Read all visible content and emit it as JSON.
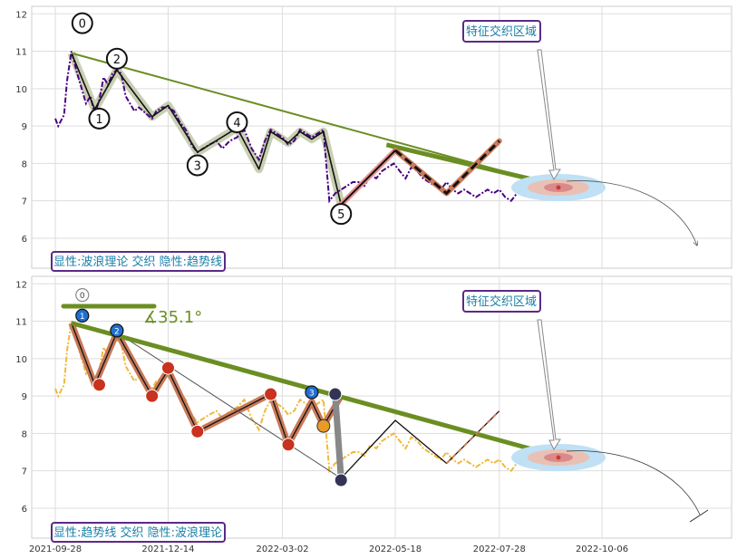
{
  "colors": {
    "trend": "#6b8e23",
    "wave_shadow": "#c8cfb3",
    "price_top": "#4b0082",
    "price_bottom": "#f0b93b",
    "projection_up": "#e0604a",
    "projection_brown": "#c87a5a",
    "box_border": "#5b2a86",
    "box_text": "#1a7fa8",
    "target_outer": "#bfe0f5",
    "target_inner": "#d98b8b",
    "marker_red": "#c8321e",
    "marker_blue": "#1f6fd0",
    "marker_orange": "#e89a26",
    "marker_dark": "#333355"
  },
  "chart_data": [
    {
      "type": "line",
      "panel": "top",
      "y_ticks": [
        6,
        7,
        8,
        9,
        10,
        11,
        12
      ],
      "ylim": [
        5.2,
        12.2
      ],
      "grid": true,
      "annotations": {
        "region_label": "特征交织区域",
        "bottom_label": "显性:波浪理论 交织 隐性:趋势线"
      },
      "wave_labels": [
        "0",
        "1",
        "2",
        "3",
        "4",
        "5"
      ],
      "series": [
        {
          "role": "price",
          "x": [
            "2021-09-28",
            "2021-09-30",
            "2021-10-04",
            "2021-10-06",
            "2021-10-09",
            "2021-10-13",
            "2021-10-16",
            "2021-10-19",
            "2021-10-22",
            "2021-10-25",
            "2021-10-28",
            "2021-10-31",
            "2021-11-03",
            "2021-11-06",
            "2021-11-09",
            "2021-11-12",
            "2021-11-15",
            "2021-11-18",
            "2021-11-21",
            "2021-11-24",
            "2021-11-27",
            "2021-11-30",
            "2021-12-03",
            "2021-12-06",
            "2021-12-10",
            "2021-12-14",
            "2021-12-18",
            "2021-12-22",
            "2021-12-26",
            "2021-12-30",
            "2022-01-03",
            "2022-01-07",
            "2022-01-11",
            "2022-01-16",
            "2022-01-20",
            "2022-01-25",
            "2022-01-30",
            "2022-02-04",
            "2022-02-09",
            "2022-02-14",
            "2022-02-18",
            "2022-02-22",
            "2022-02-26",
            "2022-03-02",
            "2022-03-06",
            "2022-03-10",
            "2022-03-14",
            "2022-03-18",
            "2022-03-22",
            "2022-03-26",
            "2022-03-30",
            "2022-04-03",
            "2022-04-07",
            "2022-04-11",
            "2022-04-15",
            "2022-04-19",
            "2022-04-23",
            "2022-04-27",
            "2022-05-01",
            "2022-05-05",
            "2022-05-09",
            "2022-05-13",
            "2022-05-17",
            "2022-05-21",
            "2022-05-25",
            "2022-05-29",
            "2022-06-02",
            "2022-06-06",
            "2022-06-10",
            "2022-06-14",
            "2022-06-18",
            "2022-06-22",
            "2022-06-26",
            "2022-06-30",
            "2022-07-04",
            "2022-07-08",
            "2022-07-12",
            "2022-07-16",
            "2022-07-20",
            "2022-07-24",
            "2022-07-28",
            "2022-08-01",
            "2022-08-05",
            "2022-08-09",
            "2022-08-13",
            "2022-08-17"
          ],
          "y": [
            9.2,
            9.0,
            9.3,
            10.2,
            11.0,
            10.4,
            10.0,
            9.6,
            9.8,
            9.3,
            9.7,
            10.3,
            10.1,
            10.4,
            10.5,
            10.4,
            9.8,
            9.6,
            9.4,
            9.5,
            9.4,
            9.3,
            9.2,
            9.4,
            9.5,
            9.5,
            9.4,
            9.1,
            8.9,
            8.5,
            8.3,
            8.4,
            8.5,
            8.6,
            8.4,
            8.6,
            8.7,
            8.9,
            8.4,
            8.1,
            8.6,
            8.9,
            8.8,
            8.7,
            8.5,
            8.6,
            8.9,
            8.8,
            8.7,
            8.8,
            8.9,
            7.0,
            7.2,
            7.3,
            7.4,
            7.5,
            7.5,
            7.4,
            7.7,
            7.6,
            7.8,
            7.9,
            8.0,
            7.8,
            7.6,
            7.9,
            7.8,
            7.6,
            7.5,
            7.4,
            7.3,
            7.5,
            7.3,
            7.2,
            7.3,
            7.2,
            7.1,
            7.2,
            7.3,
            7.2,
            7.3,
            7.1,
            7.0,
            7.2,
            7.3,
            7.1
          ]
        },
        {
          "role": "trendline",
          "x": [
            "2021-10-09",
            "2022-08-22"
          ],
          "y": [
            10.95,
            7.55
          ]
        },
        {
          "role": "wave",
          "x": [
            "2021-10-09",
            "2021-10-25",
            "2021-11-09",
            "2021-12-03",
            "2021-12-14",
            "2022-01-03",
            "2022-01-30",
            "2022-02-14",
            "2022-02-22",
            "2022-03-06",
            "2022-03-14",
            "2022-03-22",
            "2022-03-30",
            "2022-04-11"
          ],
          "y": [
            10.95,
            9.45,
            10.5,
            9.25,
            9.55,
            8.3,
            8.95,
            7.85,
            8.85,
            8.55,
            8.85,
            8.65,
            8.85,
            6.9
          ]
        },
        {
          "role": "projection",
          "x": [
            "2022-04-11",
            "2022-05-18",
            "2022-06-22",
            "2022-07-28"
          ],
          "y": [
            6.9,
            8.35,
            7.2,
            8.6
          ]
        }
      ]
    },
    {
      "type": "line",
      "panel": "bottom",
      "x_ticks": [
        "2021-09-28",
        "2021-12-14",
        "2022-03-02",
        "2022-05-18",
        "2022-07-28",
        "2022-10-06"
      ],
      "y_ticks": [
        6,
        7,
        8,
        9,
        10,
        11,
        12
      ],
      "ylim": [
        5.2,
        12.2
      ],
      "grid": true,
      "annotations": {
        "region_label": "特征交织区域",
        "bottom_label": "显性:趋势线 交织 隐性:波浪理论",
        "angle_label": "∡35.1°"
      },
      "marker_labels": [
        "0",
        "1",
        "2",
        "3"
      ],
      "series": [
        {
          "role": "price",
          "x": [
            "2021-09-28",
            "2021-09-30",
            "2021-10-04",
            "2021-10-06",
            "2021-10-09",
            "2021-10-13",
            "2021-10-16",
            "2021-10-19",
            "2021-10-22",
            "2021-10-25",
            "2021-10-28",
            "2021-10-31",
            "2021-11-03",
            "2021-11-06",
            "2021-11-09",
            "2021-11-12",
            "2021-11-15",
            "2021-11-18",
            "2021-11-21",
            "2021-11-24",
            "2021-11-27",
            "2021-11-30",
            "2021-12-03",
            "2021-12-06",
            "2021-12-10",
            "2021-12-14",
            "2021-12-18",
            "2021-12-22",
            "2021-12-26",
            "2021-12-30",
            "2022-01-03",
            "2022-01-07",
            "2022-01-11",
            "2022-01-16",
            "2022-01-20",
            "2022-01-25",
            "2022-01-30",
            "2022-02-04",
            "2022-02-09",
            "2022-02-14",
            "2022-02-18",
            "2022-02-22",
            "2022-02-26",
            "2022-03-02",
            "2022-03-06",
            "2022-03-10",
            "2022-03-14",
            "2022-03-18",
            "2022-03-22",
            "2022-03-26",
            "2022-03-30",
            "2022-04-03",
            "2022-04-07",
            "2022-04-11",
            "2022-04-15",
            "2022-04-19",
            "2022-04-23",
            "2022-04-27",
            "2022-05-01",
            "2022-05-05",
            "2022-05-09",
            "2022-05-13",
            "2022-05-17",
            "2022-05-21",
            "2022-05-25",
            "2022-05-29",
            "2022-06-02",
            "2022-06-06",
            "2022-06-10",
            "2022-06-14",
            "2022-06-18",
            "2022-06-22",
            "2022-06-26",
            "2022-06-30",
            "2022-07-04",
            "2022-07-08",
            "2022-07-12",
            "2022-07-16",
            "2022-07-20",
            "2022-07-24",
            "2022-07-28",
            "2022-08-01",
            "2022-08-05",
            "2022-08-09",
            "2022-08-13",
            "2022-08-17"
          ],
          "y": [
            9.2,
            9.0,
            9.3,
            10.2,
            11.0,
            10.4,
            10.0,
            9.6,
            9.8,
            9.3,
            9.7,
            10.3,
            10.1,
            10.4,
            10.5,
            10.4,
            9.8,
            9.6,
            9.4,
            9.5,
            9.4,
            9.3,
            9.2,
            9.4,
            9.5,
            9.5,
            9.4,
            9.1,
            8.9,
            8.5,
            8.3,
            8.4,
            8.5,
            8.6,
            8.4,
            8.6,
            8.7,
            8.9,
            8.4,
            8.1,
            8.6,
            8.9,
            8.8,
            8.7,
            8.5,
            8.6,
            8.9,
            8.8,
            8.7,
            8.8,
            8.9,
            7.0,
            7.2,
            7.3,
            7.4,
            7.5,
            7.5,
            7.4,
            7.7,
            7.6,
            7.8,
            7.9,
            8.0,
            7.8,
            7.6,
            7.9,
            7.8,
            7.6,
            7.5,
            7.4,
            7.3,
            7.5,
            7.3,
            7.2,
            7.3,
            7.2,
            7.1,
            7.2,
            7.3,
            7.2,
            7.3,
            7.1,
            7.0,
            7.2,
            7.3,
            7.1
          ]
        },
        {
          "role": "trendline",
          "x": [
            "2021-10-09",
            "2022-08-22"
          ],
          "y": [
            10.95,
            7.55
          ]
        },
        {
          "role": "wave",
          "x": [
            "2021-10-09",
            "2021-10-25",
            "2021-11-09",
            "2021-12-03",
            "2021-12-14",
            "2022-01-03",
            "2022-02-22",
            "2022-03-06",
            "2022-03-22",
            "2022-03-30",
            "2022-04-11"
          ],
          "y": [
            10.95,
            9.3,
            10.7,
            9.0,
            9.7,
            8.05,
            9.05,
            7.7,
            8.85,
            8.2,
            9.0
          ]
        },
        {
          "role": "projection",
          "x": [
            "2022-04-11",
            "2022-05-18",
            "2022-06-22",
            "2022-07-28"
          ],
          "y": [
            6.8,
            8.35,
            7.2,
            8.6
          ]
        }
      ]
    }
  ]
}
